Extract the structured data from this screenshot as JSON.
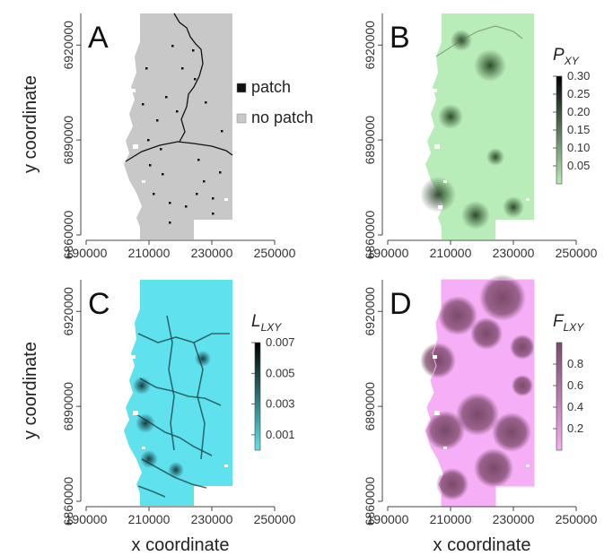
{
  "figure": {
    "xlabel": "x coordinate",
    "ylabel": "y coordinate",
    "x_ticks": [
      "190000",
      "210000",
      "230000",
      "250000"
    ],
    "y_ticks": [
      "6860000",
      "6890000",
      "6920000"
    ]
  },
  "chart_data": [
    {
      "panel": "A",
      "type": "heatmap",
      "xlabel": "",
      "ylabel": "y coordinate",
      "xlim": [
        190000,
        250000
      ],
      "ylim": [
        6860000,
        6930000
      ],
      "legend": {
        "placement": "right",
        "entries": [
          {
            "label": "patch",
            "color": "#111111"
          },
          {
            "label": "no patch",
            "color": "#c8c8c8"
          }
        ]
      }
    },
    {
      "panel": "B",
      "type": "heatmap",
      "xlabel": "",
      "ylabel": "",
      "xlim": [
        190000,
        250000
      ],
      "ylim": [
        6860000,
        6930000
      ],
      "colorbar": {
        "symbol": "P",
        "subscript": "XY",
        "ticks": [
          "0.05",
          "0.10",
          "0.15",
          "0.20",
          "0.25",
          "0.30"
        ],
        "range": [
          0,
          0.3
        ],
        "color_low": "#b8ecb8",
        "color_high": "#000000"
      }
    },
    {
      "panel": "C",
      "type": "heatmap",
      "xlabel": "x coordinate",
      "ylabel": "y coordinate",
      "xlim": [
        190000,
        250000
      ],
      "ylim": [
        6860000,
        6930000
      ],
      "colorbar": {
        "symbol": "L",
        "subscript": "LXY",
        "ticks": [
          "0.001",
          "0.003",
          "0.005",
          "0.007"
        ],
        "range": [
          0,
          0.007
        ],
        "color_low": "#5fe2ee",
        "color_high": "#000000"
      }
    },
    {
      "panel": "D",
      "type": "heatmap",
      "xlabel": "x coordinate",
      "ylabel": "",
      "xlim": [
        190000,
        250000
      ],
      "ylim": [
        6860000,
        6930000
      ],
      "colorbar": {
        "symbol": "F",
        "subscript": "LXY",
        "ticks": [
          "0.2",
          "0.4",
          "0.6",
          "0.8"
        ],
        "range": [
          0,
          1
        ],
        "color_low": "#f6aef6",
        "color_high": "#7b4a6a"
      }
    }
  ]
}
